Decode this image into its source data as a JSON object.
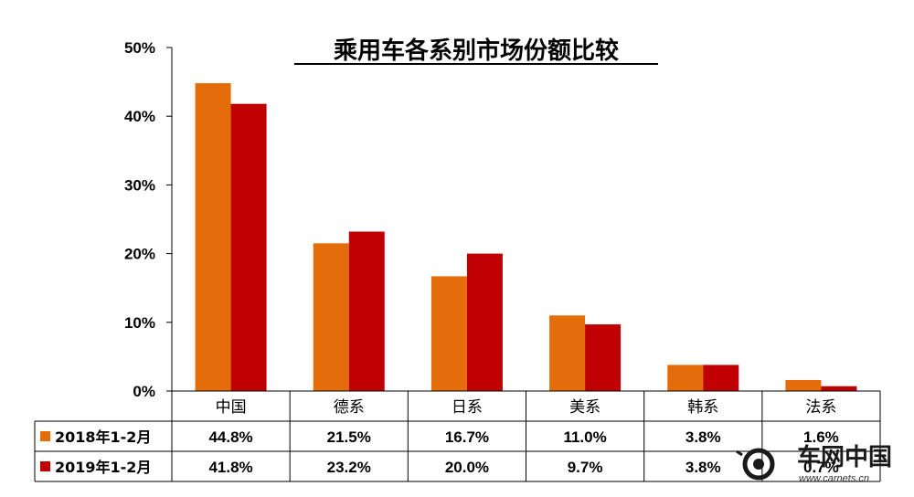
{
  "chart_data": {
    "type": "bar",
    "title": "乘用车各系别市场份额比较",
    "categories": [
      "中国",
      "德系",
      "日系",
      "美系",
      "韩系",
      "法系"
    ],
    "series": [
      {
        "name": "2018年1-2月",
        "values": [
          44.8,
          21.5,
          16.7,
          11.0,
          3.8,
          1.6
        ],
        "labels": [
          "44.8%",
          "21.5%",
          "16.7%",
          "11.0%",
          "3.8%",
          "1.6%"
        ],
        "color": "#E46C0A"
      },
      {
        "name": "2019年1-2月",
        "values": [
          41.8,
          23.2,
          20.0,
          9.7,
          3.8,
          0.7
        ],
        "labels": [
          "41.8%",
          "23.2%",
          "20.0%",
          "9.7%",
          "3.8%",
          "0.7%"
        ],
        "color": "#C00000"
      }
    ],
    "yticks": [
      "0%",
      "10%",
      "20%",
      "30%",
      "40%",
      "50%"
    ],
    "ylim": [
      0,
      50
    ],
    "legend": "data-table",
    "grid": false
  },
  "watermark": {
    "text": "车网中国",
    "url": "www.carnets.cn"
  }
}
